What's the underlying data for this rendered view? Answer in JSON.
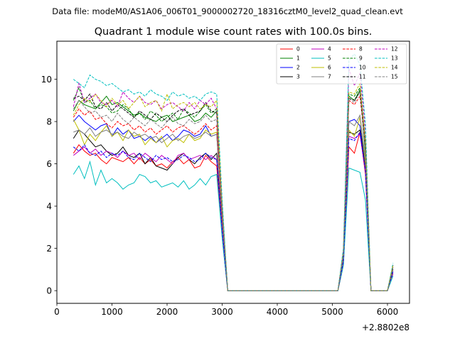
{
  "header": {
    "data_file_label": "Data file: modeM0/AS1A06_006T01_9000002720_18316cztM0_level2_quad_clean.evt"
  },
  "chart_data": {
    "type": "line",
    "title": "Quadrant 1 module wise count rates with 100.0s bins.",
    "xlabel": "",
    "ylabel": "",
    "x_offset_label": "+2.8802e8",
    "xlim": [
      0,
      6400
    ],
    "ylim": [
      -0.6,
      11.8
    ],
    "xticks": [
      0,
      1000,
      2000,
      3000,
      4000,
      5000,
      6000
    ],
    "yticks": [
      0,
      2,
      4,
      6,
      8,
      10
    ],
    "grid": false,
    "legend_position": "top-right",
    "x": [
      300,
      400,
      500,
      600,
      700,
      800,
      900,
      1000,
      1100,
      1200,
      1300,
      1400,
      1500,
      1600,
      1700,
      1800,
      1900,
      2000,
      2100,
      2200,
      2300,
      2400,
      2500,
      2600,
      2700,
      2800,
      2900,
      3000,
      3100,
      3200,
      3300,
      3400,
      3500,
      3600,
      3700,
      3800,
      3900,
      4000,
      4100,
      4200,
      4300,
      4400,
      4500,
      4600,
      4700,
      4800,
      4900,
      5000,
      5100,
      5200,
      5300,
      5400,
      5500,
      5600,
      5700,
      5800,
      5900,
      6000,
      6100
    ],
    "series": [
      {
        "name": "0",
        "color": "#ff0000",
        "dash": "solid",
        "values": [
          6.5,
          6.9,
          6.6,
          6.4,
          6.5,
          6.2,
          6.0,
          6.3,
          6.2,
          6.1,
          6.3,
          6.0,
          6.3,
          6.0,
          6.2,
          5.9,
          6.0,
          5.8,
          6.1,
          6.3,
          6.0,
          6.2,
          5.8,
          5.9,
          6.4,
          6.1,
          5.9,
          2.5,
          0,
          0,
          0,
          0,
          0,
          0,
          0,
          0,
          0,
          0,
          0,
          0,
          0,
          0,
          0,
          0,
          0,
          0,
          0,
          0,
          0,
          1.2,
          6.8,
          6.5,
          7.5,
          5.5,
          0,
          0,
          0,
          0,
          0.8
        ]
      },
      {
        "name": "1",
        "color": "#008000",
        "dash": "solid",
        "values": [
          8.5,
          9.0,
          8.8,
          8.7,
          8.6,
          8.9,
          9.2,
          8.8,
          8.9,
          8.7,
          8.5,
          8.3,
          8.4,
          8.2,
          8.1,
          8.0,
          8.2,
          8.3,
          8.0,
          8.1,
          8.2,
          8.3,
          8.0,
          8.1,
          8.4,
          8.2,
          8.5,
          4.0,
          0,
          0,
          0,
          0,
          0,
          0,
          0,
          0,
          0,
          0,
          0,
          0,
          0,
          0,
          0,
          0,
          0,
          0,
          0,
          0,
          0,
          1.8,
          9.2,
          9.0,
          9.5,
          6.5,
          0,
          0,
          0,
          0,
          1.2
        ]
      },
      {
        "name": "2",
        "color": "#0000ff",
        "dash": "solid",
        "values": [
          8.0,
          8.3,
          8.0,
          7.8,
          7.6,
          7.8,
          7.9,
          7.3,
          7.7,
          7.4,
          7.6,
          7.2,
          7.3,
          7.1,
          7.3,
          7.0,
          7.2,
          7.4,
          7.1,
          7.3,
          7.6,
          7.5,
          7.3,
          7.4,
          7.8,
          7.3,
          7.4,
          3.5,
          0,
          0,
          0,
          0,
          0,
          0,
          0,
          0,
          0,
          0,
          0,
          0,
          0,
          0,
          0,
          0,
          0,
          0,
          0,
          0,
          0,
          1.6,
          8.0,
          8.1,
          7.8,
          6.0,
          0,
          0,
          0,
          0,
          1.0
        ]
      },
      {
        "name": "3",
        "color": "#000000",
        "dash": "solid",
        "values": [
          7.2,
          7.6,
          7.4,
          7.1,
          6.8,
          6.9,
          6.6,
          6.4,
          6.5,
          6.8,
          6.4,
          6.3,
          6.5,
          6.0,
          6.3,
          5.9,
          5.8,
          5.7,
          6.0,
          6.3,
          6.5,
          6.2,
          6.0,
          6.3,
          6.5,
          6.2,
          6.5,
          3.0,
          0,
          0,
          0,
          0,
          0,
          0,
          0,
          0,
          0,
          0,
          0,
          0,
          0,
          0,
          0,
          0,
          0,
          0,
          0,
          0,
          0,
          1.5,
          7.5,
          7.4,
          7.6,
          5.8,
          0,
          0,
          0,
          0,
          0.9
        ]
      },
      {
        "name": "4",
        "color": "#bf00bf",
        "dash": "solid",
        "values": [
          6.4,
          6.6,
          6.8,
          6.5,
          6.7,
          6.4,
          6.6,
          6.5,
          6.3,
          6.6,
          6.4,
          6.5,
          6.2,
          6.5,
          6.3,
          6.1,
          6.4,
          6.2,
          6.0,
          6.4,
          6.5,
          6.2,
          6.3,
          6.4,
          6.2,
          6.4,
          6.2,
          2.9,
          0,
          0,
          0,
          0,
          0,
          0,
          0,
          0,
          0,
          0,
          0,
          0,
          0,
          0,
          0,
          0,
          0,
          0,
          0,
          0,
          0,
          1.4,
          7.3,
          7.2,
          7.4,
          5.6,
          0,
          0,
          0,
          0,
          0.8
        ]
      },
      {
        "name": "5",
        "color": "#00bfbf",
        "dash": "solid",
        "values": [
          5.5,
          5.9,
          5.3,
          6.1,
          5.0,
          5.7,
          5.1,
          5.3,
          5.1,
          4.8,
          5.0,
          5.1,
          5.5,
          5.4,
          5.1,
          5.2,
          4.9,
          5.0,
          5.1,
          4.9,
          5.2,
          4.8,
          5.0,
          5.3,
          5.0,
          5.4,
          5.5,
          2.5,
          0,
          0,
          0,
          0,
          0,
          0,
          0,
          0,
          0,
          0,
          0,
          0,
          0,
          0,
          0,
          0,
          0,
          0,
          0,
          0,
          0,
          1.2,
          5.8,
          5.7,
          5.6,
          4.3,
          0,
          0,
          0,
          0,
          0.7
        ]
      },
      {
        "name": "6",
        "color": "#bfbf00",
        "dash": "solid",
        "values": [
          8.1,
          7.6,
          6.9,
          7.4,
          7.1,
          7.5,
          7.8,
          7.3,
          7.5,
          7.1,
          7.6,
          7.3,
          7.4,
          6.9,
          7.2,
          7.0,
          7.3,
          6.8,
          7.1,
          7.2,
          7.0,
          7.4,
          7.1,
          7.2,
          7.6,
          7.4,
          7.5,
          3.4,
          0,
          0,
          0,
          0,
          0,
          0,
          0,
          0,
          0,
          0,
          0,
          0,
          0,
          0,
          0,
          0,
          0,
          0,
          0,
          0,
          0,
          1.5,
          7.6,
          7.3,
          8.2,
          6.0,
          0,
          0,
          0,
          0,
          0.9
        ]
      },
      {
        "name": "7",
        "color": "#808080",
        "dash": "solid",
        "values": [
          7.5,
          7.6,
          7.4,
          7.7,
          7.3,
          7.5,
          7.6,
          7.4,
          7.5,
          7.3,
          7.2,
          7.5,
          7.3,
          7.4,
          7.2,
          7.3,
          7.0,
          7.2,
          7.4,
          7.1,
          7.3,
          7.4,
          7.2,
          7.3,
          7.5,
          7.3,
          7.4,
          3.4,
          0,
          0,
          0,
          0,
          0,
          0,
          0,
          0,
          0,
          0,
          0,
          0,
          0,
          0,
          0,
          0,
          0,
          0,
          0,
          0,
          0,
          1.5,
          8.0,
          7.8,
          8.3,
          6.2,
          0,
          0,
          0,
          0,
          1.0
        ]
      },
      {
        "name": "8",
        "color": "#ff0000",
        "dash": "dashed",
        "values": [
          8.2,
          8.6,
          8.3,
          8.5,
          8.1,
          8.2,
          7.9,
          7.7,
          8.0,
          7.8,
          7.9,
          7.6,
          7.8,
          7.5,
          7.7,
          7.4,
          7.6,
          7.8,
          7.5,
          7.7,
          7.8,
          7.6,
          7.4,
          7.6,
          7.9,
          7.6,
          7.8,
          3.6,
          0,
          0,
          0,
          0,
          0,
          0,
          0,
          0,
          0,
          0,
          0,
          0,
          0,
          0,
          0,
          0,
          0,
          0,
          0,
          0,
          0,
          1.7,
          9.0,
          8.8,
          9.2,
          6.8,
          0,
          0,
          0,
          0,
          1.1
        ]
      },
      {
        "name": "9",
        "color": "#008000",
        "dash": "dashed",
        "values": [
          9.0,
          9.6,
          8.9,
          9.0,
          8.6,
          8.8,
          8.7,
          8.4,
          8.5,
          8.8,
          8.6,
          8.2,
          8.4,
          8.1,
          8.5,
          8.3,
          8.0,
          8.2,
          8.4,
          8.1,
          8.6,
          8.4,
          8.2,
          8.5,
          8.8,
          8.4,
          8.6,
          3.9,
          0,
          0,
          0,
          0,
          0,
          0,
          0,
          0,
          0,
          0,
          0,
          0,
          0,
          0,
          0,
          0,
          0,
          0,
          0,
          0,
          0,
          1.8,
          9.3,
          9.2,
          9.6,
          7.0,
          0,
          0,
          0,
          0,
          1.2
        ]
      },
      {
        "name": "10",
        "color": "#0000ff",
        "dash": "dashed",
        "values": [
          6.8,
          6.6,
          6.9,
          6.5,
          6.4,
          6.6,
          6.3,
          6.5,
          6.4,
          6.6,
          6.3,
          6.2,
          6.5,
          6.3,
          6.1,
          6.4,
          6.2,
          6.3,
          6.1,
          6.2,
          6.4,
          6.3,
          6.1,
          6.2,
          6.5,
          6.3,
          6.2,
          2.9,
          0,
          0,
          0,
          0,
          0,
          0,
          0,
          0,
          0,
          0,
          0,
          0,
          0,
          0,
          0,
          0,
          0,
          0,
          0,
          0,
          0,
          1.4,
          7.2,
          7.1,
          7.5,
          5.7,
          0,
          0,
          0,
          0,
          0.9
        ]
      },
      {
        "name": "11",
        "color": "#000000",
        "dash": "dashed",
        "values": [
          9.1,
          9.2,
          9.0,
          9.3,
          8.7,
          8.6,
          8.9,
          8.5,
          8.8,
          8.6,
          8.4,
          8.2,
          8.5,
          8.3,
          8.1,
          8.4,
          8.2,
          8.0,
          8.3,
          8.5,
          8.6,
          8.3,
          8.4,
          8.5,
          8.9,
          8.5,
          8.4,
          3.9,
          0,
          0,
          0,
          0,
          0,
          0,
          0,
          0,
          0,
          0,
          0,
          0,
          0,
          0,
          0,
          0,
          0,
          0,
          0,
          0,
          0,
          1.8,
          9.1,
          9.0,
          9.4,
          6.9,
          0,
          0,
          0,
          0,
          1.1
        ]
      },
      {
        "name": "12",
        "color": "#bf00bf",
        "dash": "dashed",
        "values": [
          8.7,
          9.8,
          8.9,
          9.1,
          9.3,
          8.9,
          8.8,
          9.0,
          8.7,
          9.4,
          9.1,
          8.9,
          9.2,
          8.9,
          8.8,
          9.0,
          8.6,
          8.8,
          8.9,
          8.7,
          8.5,
          8.9,
          8.6,
          9.0,
          8.8,
          9.1,
          8.6,
          4.0,
          0,
          0,
          0,
          0,
          0,
          0,
          0,
          0,
          0,
          0,
          0,
          0,
          0,
          0,
          0,
          0,
          0,
          0,
          0,
          0,
          0,
          1.9,
          10.5,
          9.7,
          10.3,
          7.5,
          0,
          0,
          0,
          0,
          1.2
        ]
      },
      {
        "name": "13",
        "color": "#00bfbf",
        "dash": "dashed",
        "values": [
          10.0,
          9.8,
          9.6,
          10.2,
          10.0,
          9.9,
          9.7,
          9.8,
          9.6,
          9.4,
          9.5,
          9.3,
          9.4,
          9.2,
          9.5,
          9.3,
          9.2,
          9.0,
          9.4,
          9.2,
          9.3,
          9.1,
          9.2,
          9.0,
          9.3,
          9.4,
          9.3,
          4.3,
          0,
          0,
          0,
          0,
          0,
          0,
          0,
          0,
          0,
          0,
          0,
          0,
          0,
          0,
          0,
          0,
          0,
          0,
          0,
          0,
          0,
          2.0,
          10.9,
          11.2,
          10.7,
          7.9,
          0,
          0,
          0,
          0,
          1.3
        ]
      },
      {
        "name": "14",
        "color": "#bfbf00",
        "dash": "dashed",
        "values": [
          8.3,
          8.8,
          9.1,
          8.9,
          9.3,
          9.0,
          8.7,
          9.1,
          8.8,
          9.0,
          8.6,
          8.9,
          9.2,
          8.7,
          8.9,
          9.0,
          8.5,
          9.3,
          8.6,
          8.8,
          8.9,
          8.7,
          8.9,
          8.6,
          8.8,
          8.7,
          9.0,
          3.9,
          0,
          0,
          0,
          0,
          0,
          0,
          0,
          0,
          0,
          0,
          0,
          0,
          0,
          0,
          0,
          0,
          0,
          0,
          0,
          0,
          0,
          1.8,
          9.4,
          9.3,
          9.8,
          7.1,
          0,
          0,
          0,
          0,
          1.2
        ]
      },
      {
        "name": "15",
        "color": "#808080",
        "dash": "dashed",
        "values": [
          8.6,
          9.0,
          8.7,
          8.4,
          8.5,
          8.2,
          8.3,
          8.0,
          8.4,
          8.1,
          7.9,
          8.2,
          8.0,
          7.8,
          8.1,
          7.9,
          7.7,
          8.0,
          8.2,
          7.9,
          7.8,
          8.1,
          7.9,
          8.0,
          8.3,
          8.0,
          8.1,
          3.7,
          0,
          0,
          0,
          0,
          0,
          0,
          0,
          0,
          0,
          0,
          0,
          0,
          0,
          0,
          0,
          0,
          0,
          0,
          0,
          0,
          0,
          1.7,
          9.1,
          8.9,
          9.4,
          6.8,
          0,
          0,
          0,
          0,
          1.1
        ]
      }
    ]
  }
}
